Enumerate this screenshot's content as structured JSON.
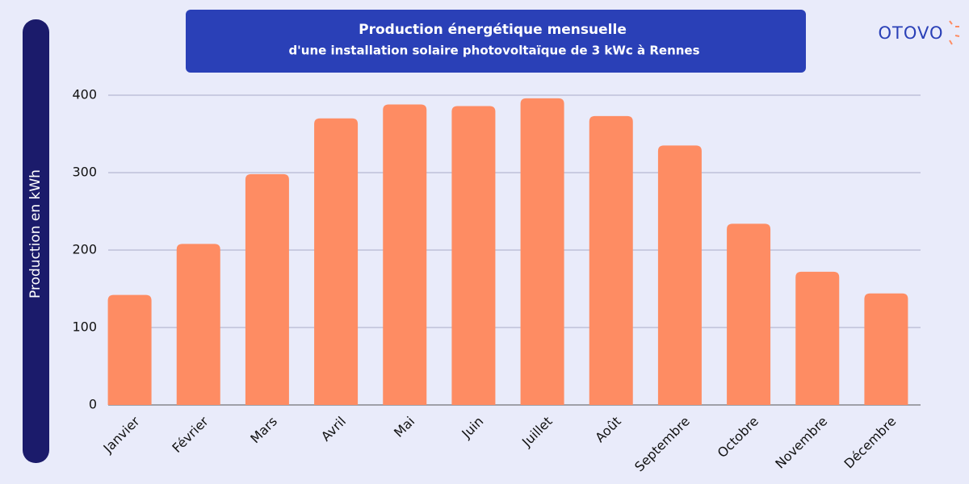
{
  "logo": "OTOVO",
  "chart_data": {
    "type": "bar",
    "title": "Production énergétique mensuelle",
    "subtitle": "d'une installation solaire photovoltaïque de 3 kWc à Rennes",
    "y_label": "Production en kWh",
    "categories": [
      "Janvier",
      "Février",
      "Mars",
      "Avril",
      "Mai",
      "Juin",
      "Juillet",
      "Août",
      "Septembre",
      "Octobre",
      "Novembre",
      "Décembre"
    ],
    "values": [
      142,
      208,
      298,
      370,
      388,
      386,
      396,
      373,
      335,
      234,
      172,
      144
    ],
    "color": "#fe8c63",
    "ylim": [
      0,
      400
    ],
    "yticks": [
      0,
      100,
      200,
      300,
      400
    ],
    "grid": true
  }
}
